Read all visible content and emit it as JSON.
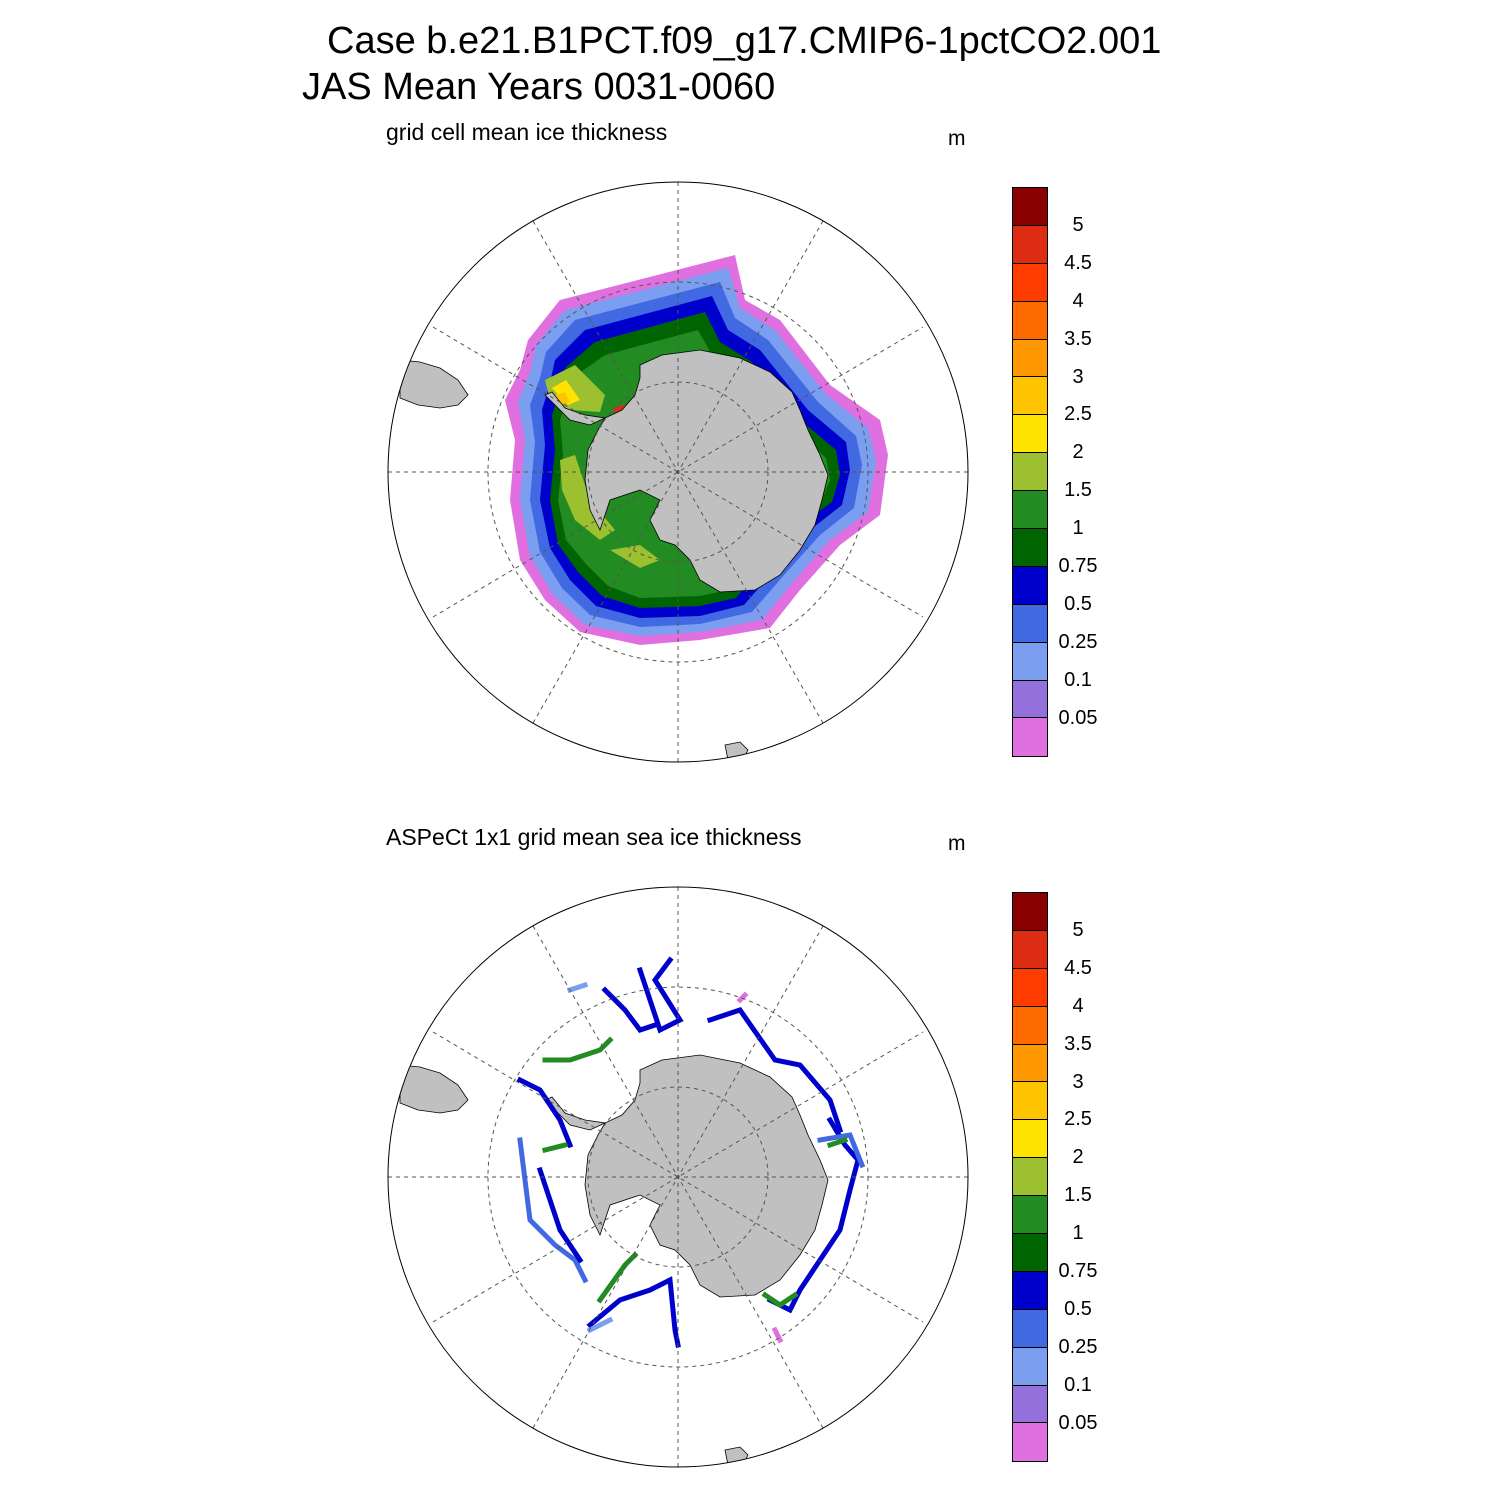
{
  "title_line1": "Case b.e21.B1PCT.f09_g17.CMIP6-1pctCO2.001",
  "title_line2": "JAS Mean   Years 0031-0060",
  "panels": [
    {
      "title": "grid cell mean ice thickness",
      "units": "m"
    },
    {
      "title": "ASPeCt 1x1 grid mean sea ice thickness",
      "units": "m"
    }
  ],
  "colorbar": {
    "labels": [
      "5",
      "4.5",
      "4",
      "3.5",
      "3",
      "2.5",
      "2",
      "1.5",
      "1",
      "0.75",
      "0.5",
      "0.25",
      "0.1",
      "0.05"
    ],
    "colors": [
      "#8b0000",
      "#dc2c14",
      "#ff3c00",
      "#ff6a00",
      "#ff9800",
      "#ffc400",
      "#ffe400",
      "#9cc030",
      "#228b22",
      "#006400",
      "#0000cd",
      "#4169e1",
      "#7b9ef0",
      "#9370db",
      "#e070e0"
    ]
  },
  "colors": {
    "land": "#c0c0c0",
    "grid": "#555555"
  }
}
